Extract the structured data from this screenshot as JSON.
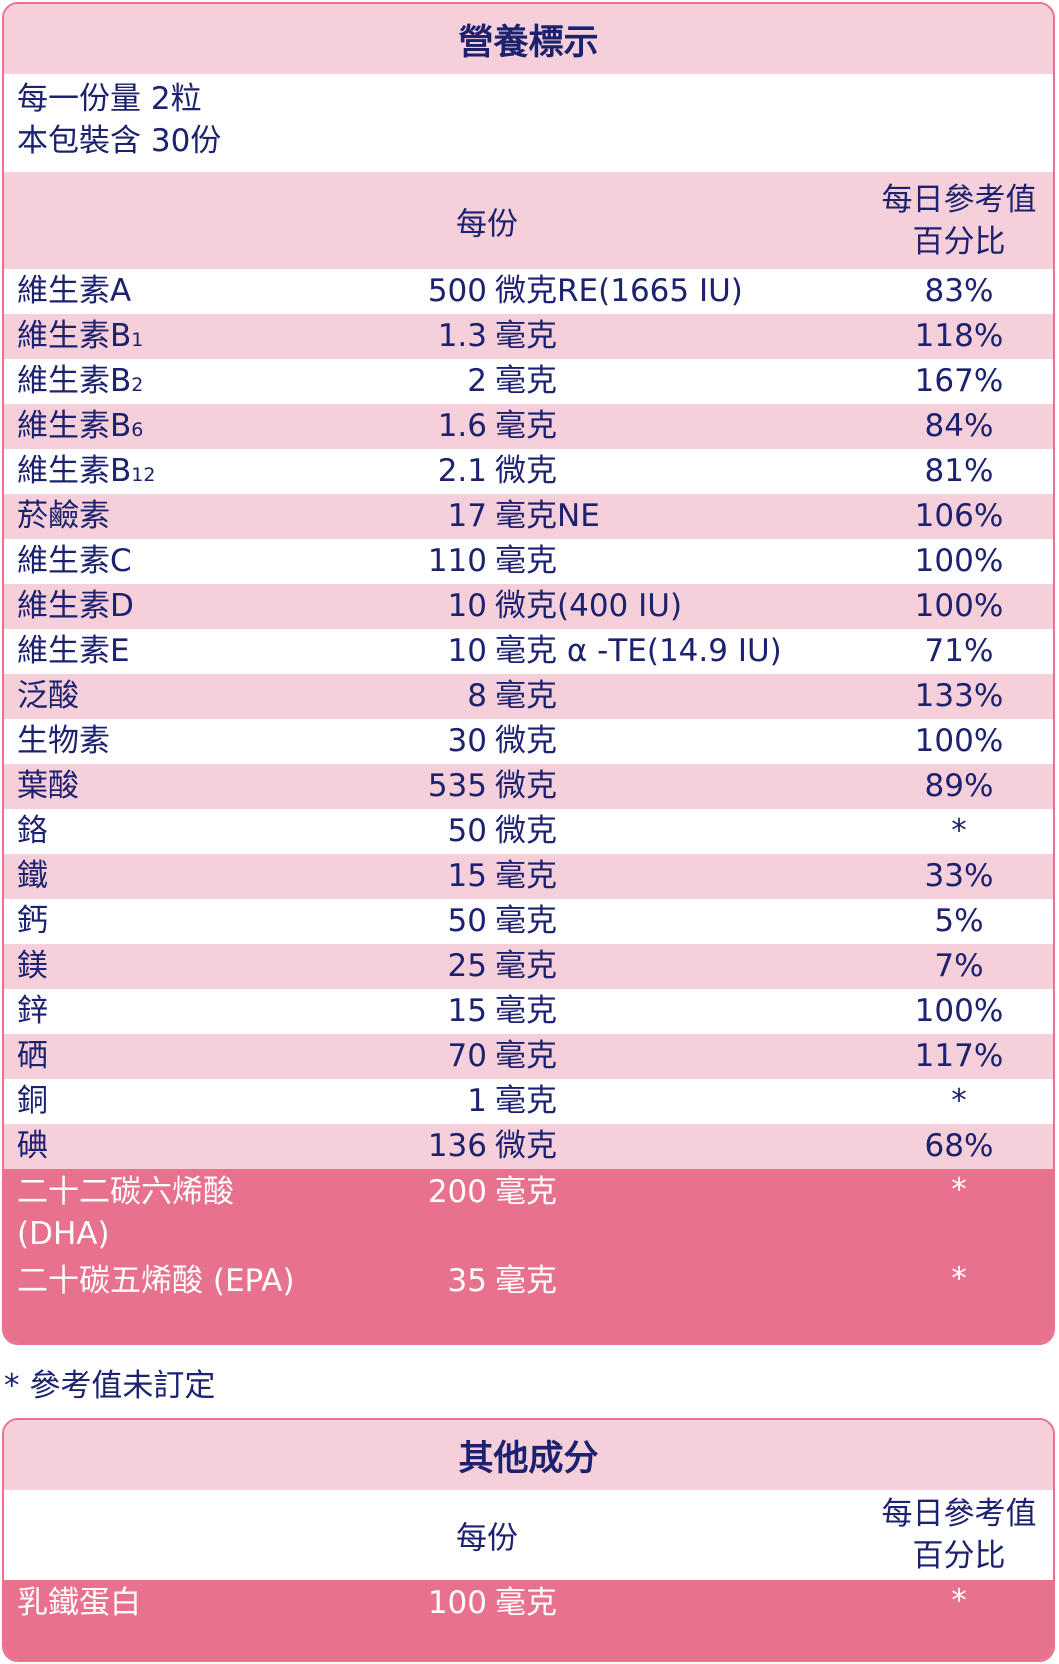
{
  "nutrition": {
    "title": "營養標示",
    "serving_size": "每一份量 2粒",
    "servings_per_pack": "本包裝含 30份",
    "col_per_serving": "每份",
    "col_dv_line1": "每日參考值",
    "col_dv_line2": "百分比",
    "rows": [
      {
        "name": "維生素A",
        "sub": "",
        "num": "500",
        "unit": "微克RE(1665 IU)",
        "pct": "83%"
      },
      {
        "name": "維生素B",
        "sub": "1",
        "num": "1.3",
        "unit": "毫克",
        "pct": "118%"
      },
      {
        "name": "維生素B",
        "sub": "2",
        "num": "2",
        "unit": "毫克",
        "pct": "167%"
      },
      {
        "name": "維生素B",
        "sub": "6",
        "num": "1.6",
        "unit": "毫克",
        "pct": "84%"
      },
      {
        "name": "維生素B",
        "sub": "12",
        "num": "2.1",
        "unit": "微克",
        "pct": "81%"
      },
      {
        "name": "菸鹼素",
        "sub": "",
        "num": "17",
        "unit": "毫克NE",
        "pct": "106%"
      },
      {
        "name": "維生素C",
        "sub": "",
        "num": "110",
        "unit": "毫克",
        "pct": "100%"
      },
      {
        "name": "維生素D",
        "sub": "",
        "num": "10",
        "unit": "微克(400 IU)",
        "pct": "100%"
      },
      {
        "name": "維生素E",
        "sub": "",
        "num": "10",
        "unit": "毫克 α -TE(14.9 IU)",
        "pct": "71%"
      },
      {
        "name": "泛酸",
        "sub": "",
        "num": "8",
        "unit": "毫克",
        "pct": "133%"
      },
      {
        "name": "生物素",
        "sub": "",
        "num": "30",
        "unit": "微克",
        "pct": "100%"
      },
      {
        "name": "葉酸",
        "sub": "",
        "num": "535",
        "unit": "微克",
        "pct": "89%"
      },
      {
        "name": "鉻",
        "sub": "",
        "num": "50",
        "unit": "微克",
        "pct": "*"
      },
      {
        "name": "鐵",
        "sub": "",
        "num": "15",
        "unit": "毫克",
        "pct": "33%"
      },
      {
        "name": "鈣",
        "sub": "",
        "num": "50",
        "unit": "毫克",
        "pct": "5%"
      },
      {
        "name": "鎂",
        "sub": "",
        "num": "25",
        "unit": "毫克",
        "pct": "7%"
      },
      {
        "name": "鋅",
        "sub": "",
        "num": "15",
        "unit": "毫克",
        "pct": "100%"
      },
      {
        "name": "硒",
        "sub": "",
        "num": "70",
        "unit": "毫克",
        "pct": "117%"
      },
      {
        "name": "銅",
        "sub": "",
        "num": "1",
        "unit": "毫克",
        "pct": "*"
      },
      {
        "name": "碘",
        "sub": "",
        "num": "136",
        "unit": "微克",
        "pct": "68%"
      }
    ],
    "highlight_rows": [
      {
        "name": "二十二碳六烯酸 (DHA)",
        "num": "200",
        "unit": "毫克",
        "pct": "*"
      },
      {
        "name": "二十碳五烯酸 (EPA)",
        "num": "35",
        "unit": "毫克",
        "pct": "*"
      }
    ]
  },
  "footnote": "* 參考值未訂定",
  "other": {
    "title": "其他成分",
    "col_per_serving": "每份",
    "col_dv_line1": "每日參考值",
    "col_dv_line2": "百分比",
    "rows": [
      {
        "name": "乳鐵蛋白",
        "num": "100",
        "unit": "毫克",
        "pct": "*"
      }
    ]
  },
  "colors": {
    "light_pink": "#f5cfd9",
    "dark_pink": "#e8718d",
    "navy_text": "#1c2170"
  }
}
